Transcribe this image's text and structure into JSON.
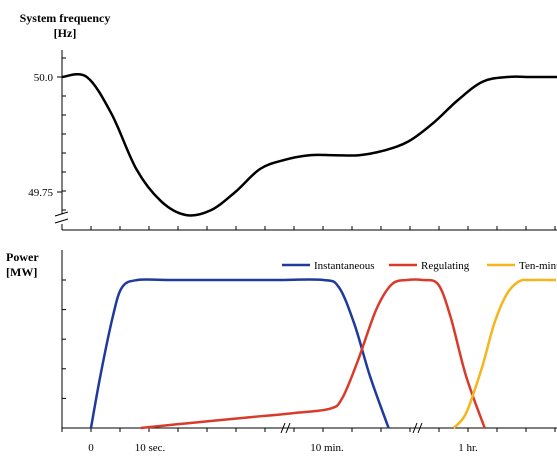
{
  "chart_data": [
    {
      "type": "line",
      "ylabel_line1": "System frequency",
      "ylabel_line2": "[Hz]",
      "ytick_labels": [
        "50.0",
        "49.75"
      ],
      "y_ticks": [
        50.0,
        49.75
      ],
      "ylim": [
        49.69,
        50.06
      ],
      "axis_break": "y",
      "grid": false,
      "series": [
        {
          "color": "#000000",
          "x": [
            0,
            1,
            2,
            3,
            4,
            5,
            6,
            7,
            8,
            9,
            10,
            11,
            12,
            13,
            14,
            15,
            16,
            17,
            18,
            19,
            20
          ],
          "y": [
            50.0,
            50.0,
            49.92,
            49.8,
            49.73,
            49.7,
            49.71,
            49.75,
            49.8,
            49.82,
            49.83,
            49.83,
            49.83,
            49.84,
            49.86,
            49.9,
            49.95,
            49.99,
            50.0,
            50.0,
            50.0
          ]
        }
      ]
    },
    {
      "type": "line",
      "ylabel_line1": "Power",
      "ylabel_line2": "[MW]",
      "xtick_labels": [
        "0",
        "10 sec.",
        "10 min.",
        "1 hr."
      ],
      "x_breaks": true,
      "legend_position": "top-right",
      "grid": false,
      "series": [
        {
          "name": "Instantaneous",
          "color": "#1f3a9c",
          "x": [
            0,
            0.3,
            0.7,
            1.0,
            1.5,
            2.5,
            4.5,
            6.0,
            7.5,
            8.0,
            8.5,
            9.0,
            9.6
          ],
          "y": [
            0,
            0.35,
            0.75,
            0.95,
            1.0,
            1.0,
            1.0,
            1.0,
            1.0,
            0.95,
            0.7,
            0.35,
            0
          ]
        },
        {
          "name": "Regulating",
          "color": "#d93b2b",
          "x": [
            1.6,
            3.0,
            5.0,
            6.5,
            7.7,
            8.1,
            8.6,
            9.2,
            9.7,
            10.2,
            10.7,
            11.2,
            11.6,
            12.1,
            12.7
          ],
          "y": [
            0,
            0.03,
            0.07,
            0.1,
            0.13,
            0.2,
            0.45,
            0.8,
            0.97,
            1.0,
            1.0,
            0.97,
            0.75,
            0.35,
            0
          ]
        },
        {
          "name": "Ten-minute",
          "color": "#f5b51c",
          "x": [
            11.7,
            12.1,
            12.6,
            13.0,
            13.4,
            13.8,
            14.2,
            15.0
          ],
          "y": [
            0,
            0.1,
            0.4,
            0.7,
            0.9,
            0.99,
            1.0,
            1.0
          ]
        }
      ]
    }
  ]
}
